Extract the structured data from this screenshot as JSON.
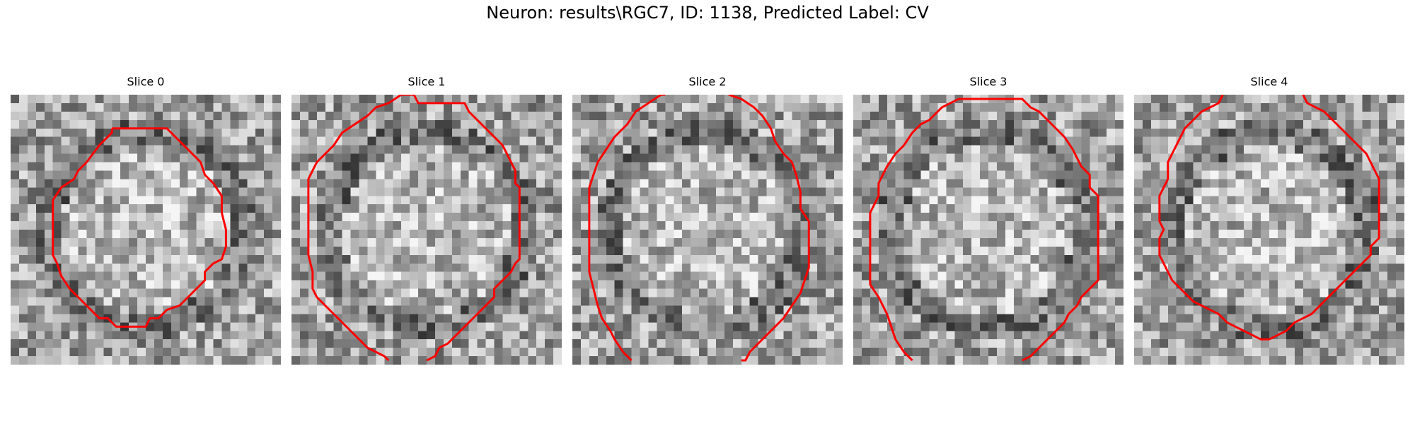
{
  "figure": {
    "title": "Neuron: results\\RGC7, ID: 1138, Predicted Label: CV"
  },
  "panels": [
    {
      "title": "Slice 0",
      "image": "grayscale-pixel-patch",
      "overlay_color": "#ff0000",
      "seed": 11
    },
    {
      "title": "Slice 1",
      "image": "grayscale-pixel-patch",
      "overlay_color": "#ff0000",
      "seed": 23
    },
    {
      "title": "Slice 2",
      "image": "grayscale-pixel-patch",
      "overlay_color": "#ff0000",
      "seed": 37
    },
    {
      "title": "Slice 3",
      "image": "grayscale-pixel-patch",
      "overlay_color": "#ff0000",
      "seed": 51
    },
    {
      "title": "Slice 4",
      "image": "grayscale-pixel-patch",
      "overlay_color": "#ff0000",
      "seed": 67
    }
  ]
}
